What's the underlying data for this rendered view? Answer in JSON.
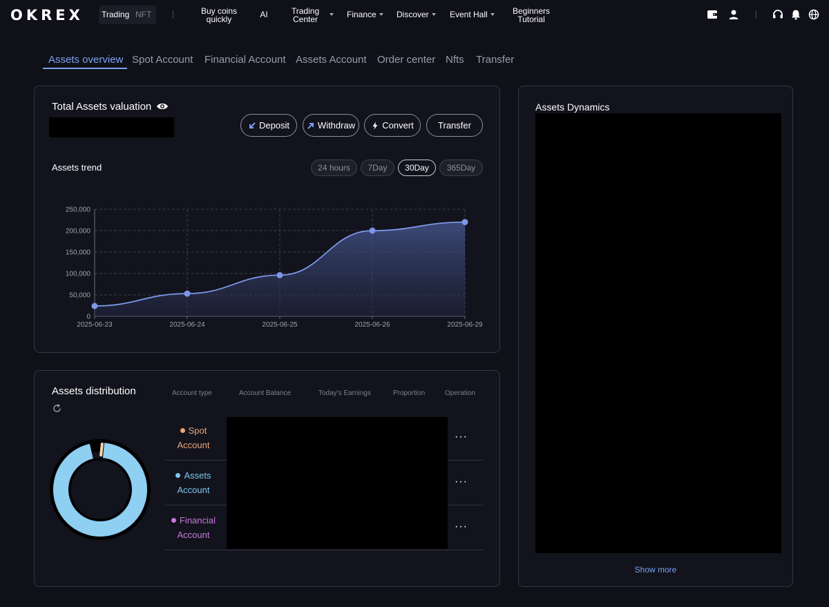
{
  "nav": {
    "logo": "OKREX",
    "mode_trading": "Trading",
    "mode_nft": "NFT",
    "items": [
      {
        "label": "Buy coins quickly",
        "line1": "Buy coins",
        "line2": "quickly"
      },
      {
        "label": "AI"
      },
      {
        "label": "Trading Center",
        "line1": "Trading",
        "line2": "Center"
      },
      {
        "label": "Finance"
      },
      {
        "label": "Discover"
      },
      {
        "label": "Event Hall"
      },
      {
        "label": "Beginners Tutorial",
        "line1": "Beginners",
        "line2": "Tutorial"
      }
    ],
    "icons": [
      "wallet-icon",
      "user-icon",
      "headset-icon",
      "bell-icon",
      "globe-icon"
    ]
  },
  "tabs": [
    "Assets overview",
    "Spot Account",
    "Financial Account",
    "Assets Account",
    "Order center",
    "Nfts",
    "Transfer"
  ],
  "assets": {
    "title": "Total Assets valuation",
    "buttons": {
      "deposit": "Deposit",
      "withdraw": "Withdraw",
      "convert": "Convert",
      "transfer": "Transfer"
    },
    "trend_title": "Assets trend",
    "ranges": [
      "24 hours",
      "7Day",
      "30Day",
      "365Day"
    ],
    "active_range": "30Day"
  },
  "chart_data": {
    "type": "area",
    "title": "",
    "xlabel": "",
    "ylabel": "",
    "x": [
      "2025-06-23",
      "2025-06-24",
      "2025-06-25",
      "2025-06-26",
      "2025-06-29"
    ],
    "values": [
      24000,
      53000,
      96000,
      200000,
      220000
    ],
    "ylim": [
      0,
      250000
    ],
    "yticks": [
      0,
      50000,
      100000,
      150000,
      200000,
      250000
    ],
    "ytick_labels": [
      "0",
      "50,000",
      "100,000",
      "150,000",
      "200,000",
      "250,000"
    ],
    "grid": true,
    "line_color": "#7b97e8"
  },
  "distribution": {
    "title": "Assets distribution",
    "columns": [
      "Account type",
      "Account Balance",
      "Today's Earnings",
      "Proportion",
      "Operation"
    ],
    "rows": [
      {
        "line1": "Spot",
        "line2": "Account",
        "color": "#e9a67a"
      },
      {
        "line1": "Assets",
        "line2": "Account",
        "color": "#7ec8ee"
      },
      {
        "line1": "Financial",
        "line2": "Account",
        "color": "#c67ad8"
      }
    ],
    "more_label": "···",
    "donut": {
      "segments": [
        {
          "name": "Spot Account",
          "color": "#f5d3a7",
          "share": 0.012
        },
        {
          "name": "Assets Account",
          "color": "#8ecff2",
          "share": 0.988
        }
      ]
    }
  },
  "dynamics": {
    "title": "Assets Dynamics",
    "show_more": "Show more"
  }
}
